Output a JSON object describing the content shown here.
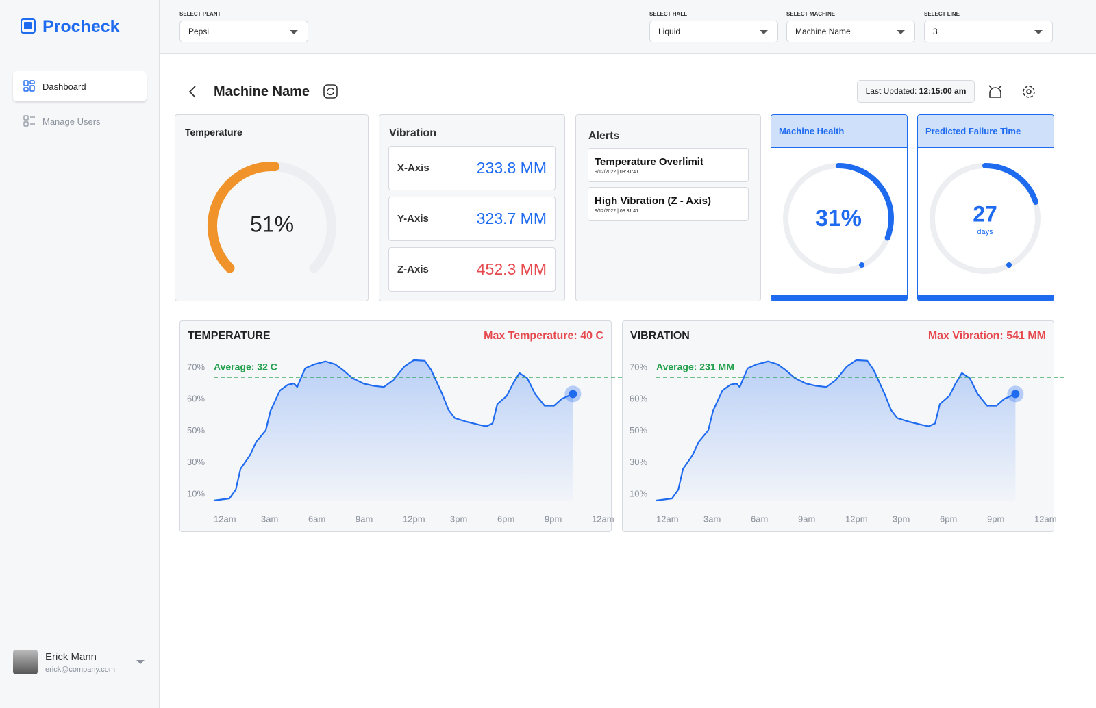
{
  "sidebar": {
    "logo": "Procheck",
    "nav": [
      "Dashboard",
      "Manage Users"
    ],
    "user": {
      "name": "Erick Mann",
      "email": "erick@company.com"
    }
  },
  "filters": [
    {
      "label": "SELECT PLANT",
      "value": "Pepsi"
    },
    {
      "label": "SELECT HALL",
      "value": "Liquid"
    },
    {
      "label": "SELECT MACHINE",
      "value": "Machine Name"
    },
    {
      "label": "SELECT LINE",
      "value": "3"
    }
  ],
  "page_title": "Machine Name",
  "last_updated": {
    "label": "Last Updated:",
    "time": "12:15:00 am"
  },
  "temperature_card": {
    "title": "Temperature",
    "value": 51,
    "value_label": "51%",
    "color": "#f0932b"
  },
  "vibration_card": {
    "title": "Vibration",
    "axes": [
      {
        "name": "X-Axis",
        "value": "233.8 MM",
        "color": "#1f6bf0"
      },
      {
        "name": "Y-Axis",
        "value": "323.7 MM",
        "color": "#1f6bf0"
      },
      {
        "name": "Z-Axis",
        "value": "452.3 MM",
        "color": "#e5484d"
      }
    ]
  },
  "alerts": {
    "title": "Alerts",
    "items": [
      {
        "title": "Temperature Overlimit",
        "time": "9/12/2022 | 08:31:41"
      },
      {
        "title": "High Vibration (Z - Axis)",
        "time": "9/12/2022 | 08:31:41"
      }
    ]
  },
  "health": {
    "title": "Machine Health",
    "value": 31,
    "value_label": "31%",
    "color": "#1f6bf0"
  },
  "failure": {
    "title": "Predicted Failure Time",
    "value": "27",
    "unit": "days"
  },
  "chart_data": [
    {
      "type": "line",
      "title": "TEMPERATURE",
      "annotation": "Max Temperature: 40 C",
      "reference_line": {
        "label": "Average: 32 C",
        "value": 67
      },
      "x": [
        0,
        1,
        1.4,
        1.7,
        2.3,
        2.7,
        3.3,
        3.6,
        4.2,
        4.7,
        5.1,
        5.3,
        5.8,
        6.4,
        7.1,
        7.7,
        8.2,
        8.8,
        9.5,
        10.1,
        10.8,
        11.4,
        12.1,
        12.7,
        13.4,
        13.8,
        14.5,
        14.9,
        15.3,
        16,
        16.9,
        17.3,
        17.7,
        18,
        18.6,
        19,
        19.4,
        19.9,
        20.4,
        21,
        21.6,
        22.1,
        22.8
      ],
      "series": [
        {
          "color": "#1f6bf0",
          "values": [
            6.1,
            7.4,
            13,
            26.1,
            34.7,
            43.2,
            50.2,
            56.3,
            62.8,
            64.6,
            65,
            63.9,
            69.8,
            71.1,
            72,
            71.1,
            69.3,
            66.7,
            65,
            64.3,
            63.9,
            66.1,
            70.4,
            72.4,
            72.2,
            69.3,
            61.7,
            56.7,
            54.1,
            53,
            51.9,
            51.5,
            52.4,
            58.5,
            61.1,
            65,
            68.3,
            66.7,
            61.7,
            58,
            58,
            60.2,
            61.7
          ]
        }
      ],
      "xlim": [
        0,
        24
      ],
      "xticks": [
        {
          "value": 0,
          "label": "12am"
        },
        {
          "value": 3,
          "label": "3am"
        },
        {
          "value": 6,
          "label": "6am"
        },
        {
          "value": 9,
          "label": "9am"
        },
        {
          "value": 12,
          "label": "12pm"
        },
        {
          "value": 15,
          "label": "3pm"
        },
        {
          "value": 18,
          "label": "6pm"
        },
        {
          "value": 21,
          "label": "9pm"
        },
        {
          "value": 24,
          "label": "12am"
        }
      ],
      "ylim": [
        6,
        74
      ],
      "yticks": [
        {
          "value": 10,
          "label": "10%"
        },
        {
          "value": 30,
          "label": "30%"
        },
        {
          "value": 50,
          "label": "50%"
        },
        {
          "value": 60,
          "label": "60%"
        },
        {
          "value": 70,
          "label": "70%"
        }
      ],
      "y_scale": "ticks-evenly-spaced"
    },
    {
      "type": "line",
      "title": "VIBRATION",
      "annotation": "Max Vibration: 541 MM",
      "reference_line": {
        "label": "Average: 231 MM",
        "value": 67
      },
      "x": [
        0,
        1,
        1.4,
        1.7,
        2.3,
        2.7,
        3.3,
        3.6,
        4.2,
        4.7,
        5.1,
        5.3,
        5.8,
        6.4,
        7.1,
        7.7,
        8.2,
        8.8,
        9.5,
        10.1,
        10.8,
        11.4,
        12.1,
        12.7,
        13.4,
        13.8,
        14.5,
        14.9,
        15.3,
        16,
        16.9,
        17.3,
        17.7,
        18,
        18.6,
        19,
        19.4,
        19.9,
        20.4,
        21,
        21.6,
        22.1,
        22.8
      ],
      "series": [
        {
          "color": "#1f6bf0",
          "values": [
            6.1,
            7.4,
            13,
            26.1,
            34.7,
            43.2,
            50.2,
            56.3,
            62.8,
            64.6,
            65,
            63.9,
            69.8,
            71.1,
            72,
            71.1,
            69.3,
            66.7,
            65,
            64.3,
            63.9,
            66.1,
            70.4,
            72.4,
            72.2,
            69.3,
            61.7,
            56.7,
            54.1,
            53,
            51.9,
            51.5,
            52.4,
            58.5,
            61.1,
            65,
            68.3,
            66.7,
            61.7,
            58,
            58,
            60.2,
            61.7
          ]
        }
      ],
      "xlim": [
        0,
        24
      ],
      "xticks": [
        {
          "value": 0,
          "label": "12am"
        },
        {
          "value": 3,
          "label": "3am"
        },
        {
          "value": 6,
          "label": "6am"
        },
        {
          "value": 9,
          "label": "9am"
        },
        {
          "value": 12,
          "label": "12pm"
        },
        {
          "value": 15,
          "label": "3pm"
        },
        {
          "value": 18,
          "label": "6pm"
        },
        {
          "value": 21,
          "label": "9pm"
        },
        {
          "value": 24,
          "label": "12am"
        }
      ],
      "ylim": [
        6,
        74
      ],
      "yticks": [
        {
          "value": 10,
          "label": "10%"
        },
        {
          "value": 30,
          "label": "30%"
        },
        {
          "value": 50,
          "label": "50%"
        },
        {
          "value": 60,
          "label": "60%"
        },
        {
          "value": 70,
          "label": "70%"
        }
      ],
      "y_scale": "ticks-evenly-spaced"
    }
  ]
}
